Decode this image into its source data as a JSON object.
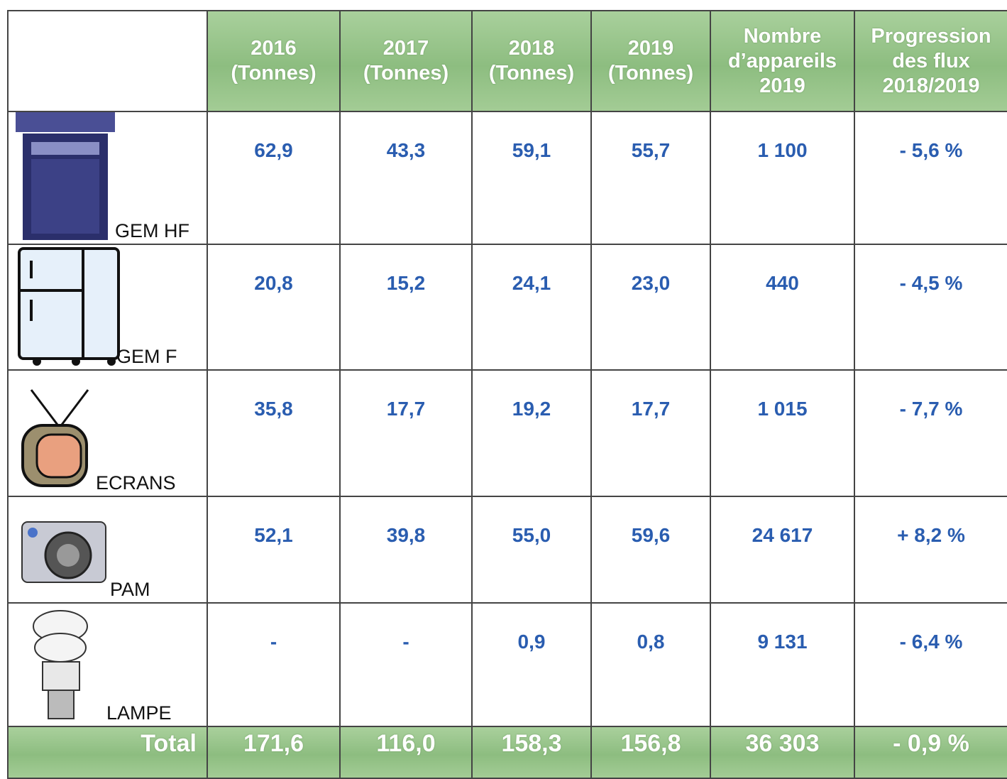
{
  "table": {
    "header": [
      "2016\n(Tonnes)",
      "2017\n(Tonnes)",
      "2018\n(Tonnes)",
      "2019\n(Tonnes)",
      "Nombre\nd’appareils\n2019",
      "Progression\ndes flux\n2018/2019"
    ],
    "rows": [
      {
        "label": "GEM HF",
        "cells": [
          "62,9",
          "43,3",
          "59,1",
          "55,7",
          "1 100",
          "- 5,6 %"
        ]
      },
      {
        "label": "GEM F",
        "cells": [
          "20,8",
          "15,2",
          "24,1",
          "23,0",
          "440",
          "- 4,5 %"
        ]
      },
      {
        "label": "ECRANS",
        "cells": [
          "35,8",
          "17,7",
          "19,2",
          "17,7",
          "1 015",
          "- 7,7 %"
        ]
      },
      {
        "label": "PAM",
        "cells": [
          "52,1",
          "39,8",
          "55,0",
          "59,6",
          "24 617",
          "+ 8,2 %"
        ]
      },
      {
        "label": "LAMPE",
        "cells": [
          "-",
          "-",
          "0,9",
          "0,8",
          "9 131",
          "- 6,4 %"
        ]
      }
    ],
    "total": {
      "label": "Total",
      "cells": [
        "171,6",
        "116,0",
        "158,3",
        "156,8",
        "36 303",
        "- 0,9 %"
      ]
    }
  }
}
